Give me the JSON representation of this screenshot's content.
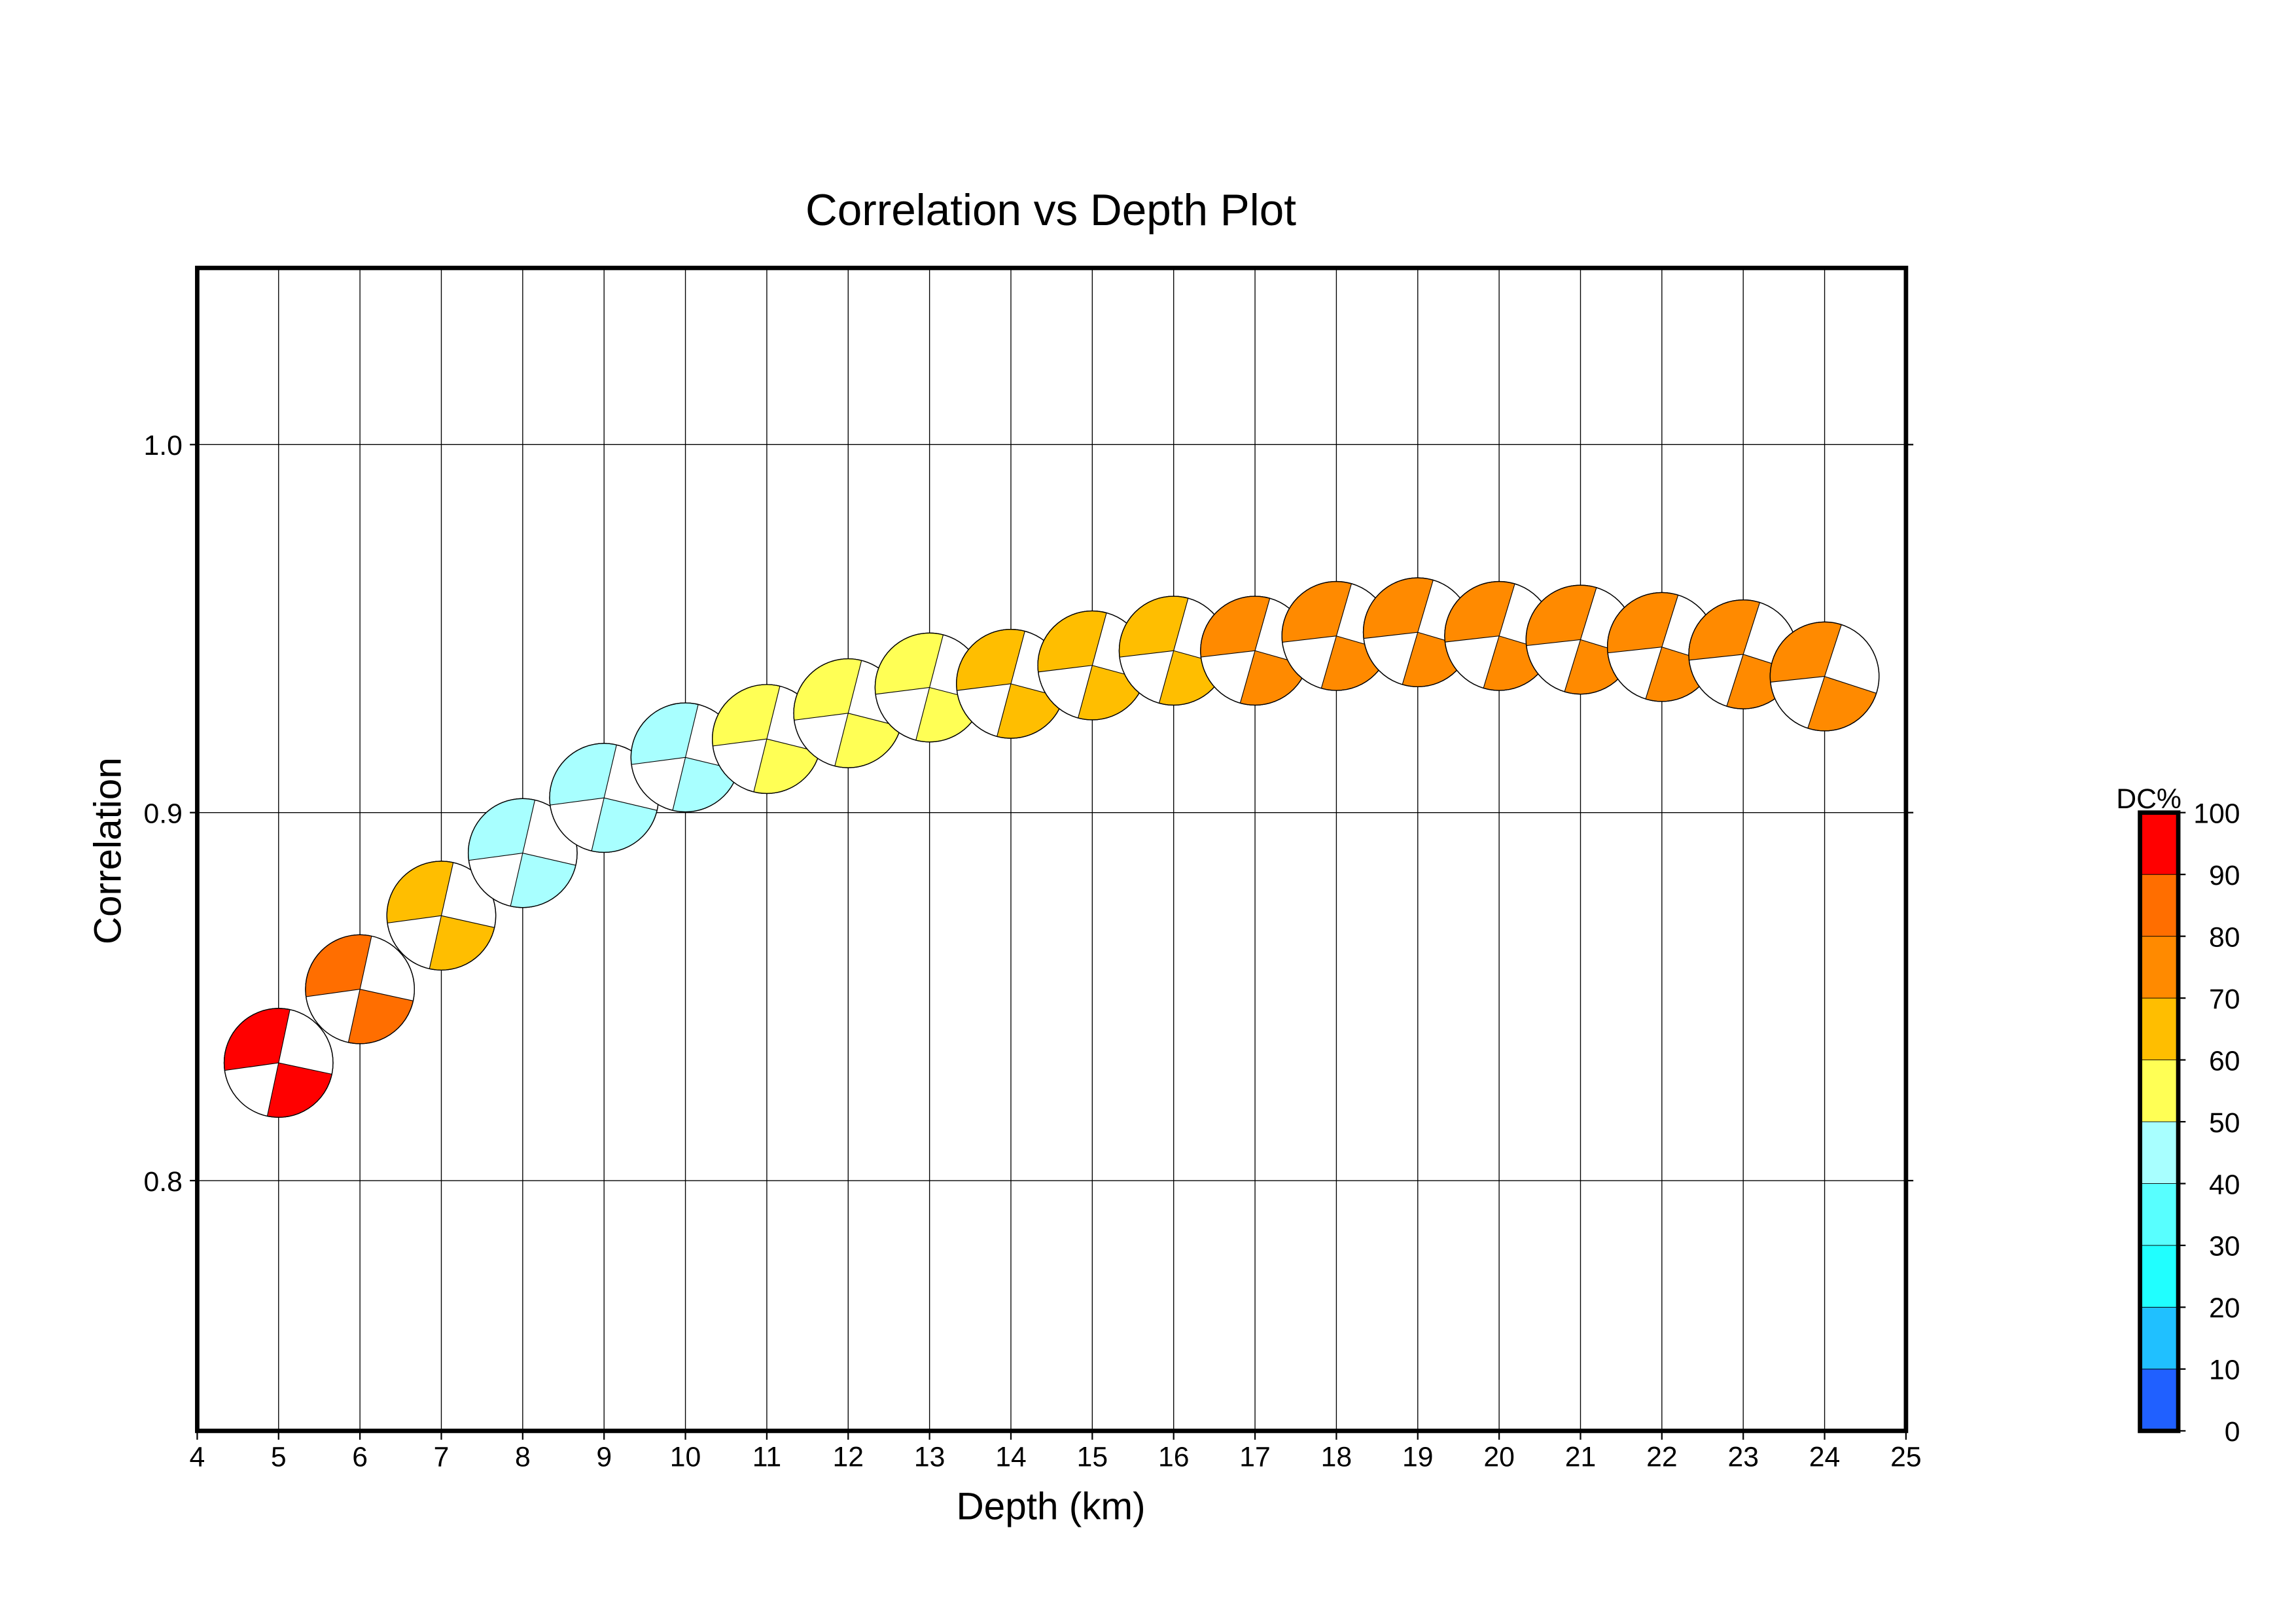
{
  "chart_data": {
    "type": "scatter",
    "title": "Correlation vs Depth Plot",
    "xlabel": "Depth (km)",
    "ylabel": "Correlation",
    "xlim": [
      4,
      25
    ],
    "ylim": [
      0.732,
      1.048
    ],
    "xticks": [
      "4",
      "5",
      "6",
      "7",
      "8",
      "9",
      "10",
      "11",
      "12",
      "13",
      "14",
      "15",
      "16",
      "17",
      "18",
      "19",
      "20",
      "21",
      "22",
      "23",
      "24",
      "25"
    ],
    "yticks": [
      {
        "value": 0.8,
        "label": "0.8"
      },
      {
        "value": 0.9,
        "label": "0.9"
      },
      {
        "value": 1.0,
        "label": "1.0"
      }
    ],
    "grid": true,
    "marker": "focal-mechanism beachball",
    "points": [
      {
        "depth": 5,
        "correlation": 0.832,
        "dc": 95
      },
      {
        "depth": 6,
        "correlation": 0.852,
        "dc": 85
      },
      {
        "depth": 7,
        "correlation": 0.872,
        "dc": 65
      },
      {
        "depth": 8,
        "correlation": 0.889,
        "dc": 45
      },
      {
        "depth": 9,
        "correlation": 0.904,
        "dc": 45
      },
      {
        "depth": 10,
        "correlation": 0.915,
        "dc": 45
      },
      {
        "depth": 11,
        "correlation": 0.92,
        "dc": 55
      },
      {
        "depth": 12,
        "correlation": 0.927,
        "dc": 55
      },
      {
        "depth": 13,
        "correlation": 0.934,
        "dc": 55
      },
      {
        "depth": 14,
        "correlation": 0.935,
        "dc": 65
      },
      {
        "depth": 15,
        "correlation": 0.94,
        "dc": 65
      },
      {
        "depth": 16,
        "correlation": 0.944,
        "dc": 65
      },
      {
        "depth": 17,
        "correlation": 0.944,
        "dc": 75
      },
      {
        "depth": 18,
        "correlation": 0.948,
        "dc": 75
      },
      {
        "depth": 19,
        "correlation": 0.949,
        "dc": 75
      },
      {
        "depth": 20,
        "correlation": 0.948,
        "dc": 75
      },
      {
        "depth": 21,
        "correlation": 0.947,
        "dc": 75
      },
      {
        "depth": 22,
        "correlation": 0.945,
        "dc": 75
      },
      {
        "depth": 23,
        "correlation": 0.943,
        "dc": 75
      },
      {
        "depth": 24,
        "correlation": 0.937,
        "dc": 75
      }
    ],
    "colorbar": {
      "label": "DC%",
      "ticks": [
        "0",
        "10",
        "20",
        "30",
        "40",
        "50",
        "60",
        "70",
        "80",
        "90",
        "100"
      ],
      "colors": [
        "#2060ff",
        "#20c0ff",
        "#20ffff",
        "#58ffff",
        "#a8ffff",
        "#ffff55",
        "#ffbe00",
        "#ff8a00",
        "#ff6e00",
        "#ff0000"
      ]
    }
  }
}
